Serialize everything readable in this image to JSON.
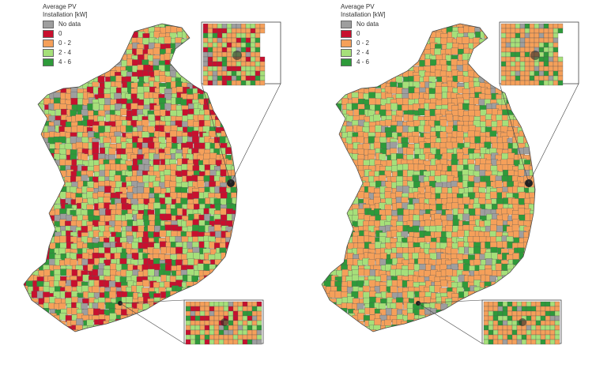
{
  "legend": {
    "title": "Average PV\nInstallation [kW]",
    "items": [
      {
        "label": "No data",
        "color": "#9e9e9e"
      },
      {
        "label": "0",
        "color": "#c8102e"
      },
      {
        "label": "0 - 2",
        "color": "#f5a05a"
      },
      {
        "label": "2 - 4",
        "color": "#a6e07a"
      },
      {
        "label": "4 - 6",
        "color": "#2e9a3a"
      }
    ]
  },
  "maps": [
    {
      "id": "left",
      "weights": {
        "gray": 0.08,
        "red": 0.18,
        "orange": 0.36,
        "light": 0.24,
        "green": 0.14
      }
    },
    {
      "id": "right",
      "weights": {
        "gray": 0.06,
        "red": 0.0,
        "orange": 0.55,
        "light": 0.25,
        "green": 0.14
      }
    }
  ]
}
